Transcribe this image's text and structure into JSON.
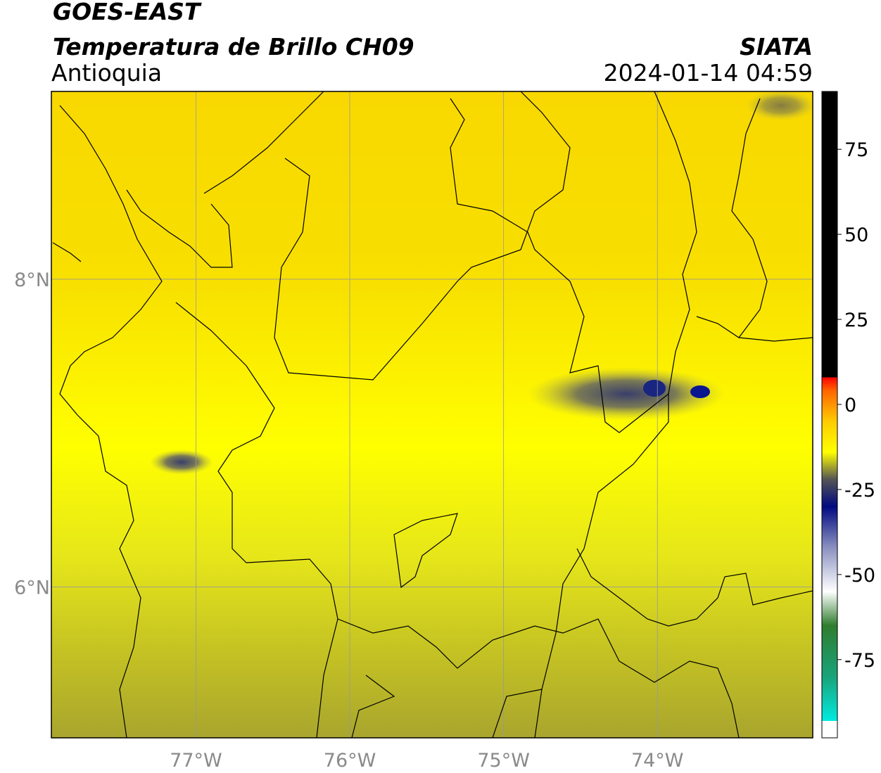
{
  "header": {
    "title": "GOES-EAST",
    "subtitle": "Temperatura de Brillo CH09",
    "region": "Antioquia",
    "source": "SIATA",
    "timestamp": "2024-01-14 04:59"
  },
  "map": {
    "xlim": [
      -77.94,
      -72.99
    ],
    "ylim": [
      5.02,
      9.22
    ],
    "xticks": [
      {
        "value": -77,
        "label": "77°W"
      },
      {
        "value": -76,
        "label": "76°W"
      },
      {
        "value": -75,
        "label": "75°W"
      },
      {
        "value": -74,
        "label": "74°W"
      }
    ],
    "yticks": [
      {
        "value": 6,
        "label": "6°N"
      },
      {
        "value": 8,
        "label": "8°N"
      }
    ],
    "grid": true,
    "grid_color": "#999999"
  },
  "colorbar": {
    "lim": [
      -98,
      92
    ],
    "ticks": [
      -75,
      -50,
      -25,
      0,
      25,
      50,
      75
    ],
    "colormap": [
      {
        "value": -98,
        "color": "#ffffff"
      },
      {
        "value": -93,
        "color": "#ffffff"
      },
      {
        "value": -93,
        "color": "#00ebe0"
      },
      {
        "value": -80,
        "color": "#1aa37a"
      },
      {
        "value": -65,
        "color": "#2e7d2e"
      },
      {
        "value": -55,
        "color": "#ffffff"
      },
      {
        "value": -42,
        "color": "#8a90c0"
      },
      {
        "value": -30,
        "color": "#000a80"
      },
      {
        "value": -22,
        "color": "#555555"
      },
      {
        "value": -14,
        "color": "#ffff00"
      },
      {
        "value": -5,
        "color": "#ffcc00"
      },
      {
        "value": 4,
        "color": "#ff6600"
      },
      {
        "value": 8,
        "color": "#ff0000"
      },
      {
        "value": 8,
        "color": "#000000"
      },
      {
        "value": 92,
        "color": "#000000"
      }
    ]
  }
}
